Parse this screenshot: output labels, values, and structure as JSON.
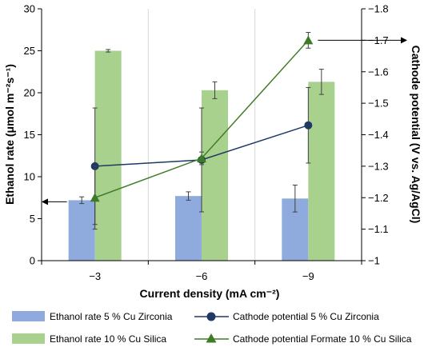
{
  "chart_data": {
    "type": "bar",
    "title": "",
    "xlabel": "Current density (mA cm⁻²)",
    "ylabel_left": "Ethanol rate (μmol m⁻²s⁻¹)",
    "ylabel_right": "Cathode potential (V vs. Ag/AgCl)",
    "categories": [
      "−3",
      "−6",
      "−9"
    ],
    "y_left": {
      "lim": [
        0,
        30
      ],
      "ticks": [
        0,
        5,
        10,
        15,
        20,
        25,
        30
      ],
      "tick_labels": [
        "0",
        "5",
        "10",
        "15",
        "20",
        "25",
        "30"
      ]
    },
    "y_right": {
      "lim": [
        -1,
        -1.8
      ],
      "ticks": [
        -1,
        -1.1,
        -1.2,
        -1.3,
        -1.4,
        -1.5,
        -1.6,
        -1.7,
        -1.8
      ],
      "tick_labels": [
        "−1",
        "−1.1",
        "−1.2",
        "−1.3",
        "−1.4",
        "−1.5",
        "−1.6",
        "−1.7",
        "−1.8"
      ]
    },
    "grid": "vertical",
    "legend_position": "bottom",
    "bar_series": [
      {
        "name": "Ethanol rate 5 % Cu Zirconia",
        "color": "#8faadc",
        "values": [
          7.2,
          7.7,
          7.4
        ],
        "error": [
          0.4,
          0.5,
          1.6
        ]
      },
      {
        "name": "Ethanol rate 10 % Cu Silica",
        "color": "#a9d18e",
        "values": [
          25.0,
          20.3,
          21.3
        ],
        "error": [
          0.15,
          1.0,
          1.5
        ]
      }
    ],
    "line_series": [
      {
        "name": "Cathode potential 5 % Cu Zirconia",
        "color": "#1f3864",
        "marker": "circle",
        "values": [
          -1.3,
          -1.32,
          -1.43
        ],
        "error": [
          0.185,
          0.165,
          0.12
        ]
      },
      {
        "name": "Cathode potential Formate 10 % Cu Silica",
        "color": "#3e7b26",
        "marker": "triangle",
        "values": [
          -1.2,
          -1.325,
          -1.7
        ],
        "error": [
          0.1,
          0.02,
          0.025
        ]
      }
    ]
  }
}
